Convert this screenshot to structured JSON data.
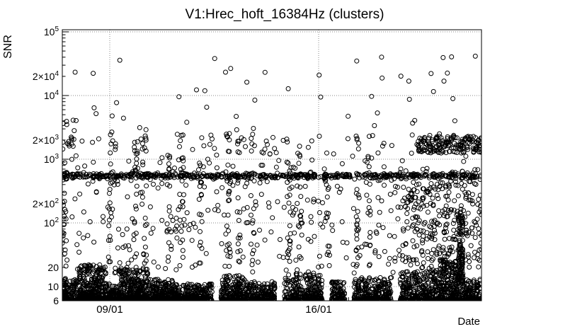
{
  "window": {
    "background": "#ffffff"
  },
  "chart_data": {
    "type": "scatter",
    "title": "V1:Hrec_hoft_16384Hz (clusters)",
    "xlabel": "Date",
    "ylabel": "SNR",
    "y_scale": "log",
    "y_range": [
      6,
      108000
    ],
    "grid": true,
    "legend": "none",
    "axis_color": "#000000",
    "grid_color": "#888888",
    "marker": {
      "shape": "open-circle",
      "color": "#000000",
      "radius": 3
    },
    "y_ticks": [
      {
        "value": 100000,
        "label": "10^5",
        "major": true
      },
      {
        "value": 20000,
        "label": "2×10^4",
        "major": false
      },
      {
        "value": 10000,
        "label": "10^4",
        "major": true
      },
      {
        "value": 2000,
        "label": "2×10^3",
        "major": false
      },
      {
        "value": 1000,
        "label": "10^3",
        "major": true
      },
      {
        "value": 200,
        "label": "2×10^2",
        "major": false
      },
      {
        "value": 100,
        "label": "10^2",
        "major": true
      },
      {
        "value": 20,
        "label": "20",
        "major": false
      },
      {
        "value": 10,
        "label": "10",
        "major": true
      },
      {
        "value": 6,
        "label": "6",
        "major": false
      }
    ],
    "x_ticks": [
      {
        "label": "09/01",
        "f": 0.1132
      },
      {
        "label": "16/01",
        "f": 0.6115
      }
    ],
    "x_minor_ticks": {
      "start_f": 0.042,
      "step_f": 0.0712
    },
    "seed": 20170109,
    "clusters": [
      {
        "name": "noise-floor-a",
        "dist": "lowbias",
        "x0": 0.0,
        "x1": 0.04,
        "count": 140,
        "ymin": 6,
        "ymax": 13
      },
      {
        "name": "noise-floor-b",
        "dist": "lowbias",
        "x0": 0.04,
        "x1": 0.105,
        "count": 380,
        "ymin": 6,
        "ymax": 22
      },
      {
        "name": "noise-floor-c",
        "dist": "lowbias",
        "x0": 0.105,
        "x1": 0.135,
        "count": 120,
        "ymin": 6,
        "ymax": 11
      },
      {
        "name": "noise-floor-d",
        "dist": "lowbias",
        "x0": 0.135,
        "x1": 0.205,
        "count": 380,
        "ymin": 6,
        "ymax": 20
      },
      {
        "name": "noise-floor-e",
        "dist": "lowbias",
        "x0": 0.205,
        "x1": 0.265,
        "count": 220,
        "ymin": 6,
        "ymax": 13
      },
      {
        "name": "noise-floor-f",
        "dist": "lowbias",
        "x0": 0.265,
        "x1": 0.358,
        "count": 300,
        "ymin": 6,
        "ymax": 11
      },
      {
        "name": "noise-floor-g",
        "dist": "lowbias",
        "x0": 0.378,
        "x1": 0.44,
        "count": 240,
        "ymin": 6,
        "ymax": 15
      },
      {
        "name": "noise-floor-h",
        "dist": "lowbias",
        "x0": 0.44,
        "x1": 0.507,
        "count": 220,
        "ymin": 6,
        "ymax": 12
      },
      {
        "name": "noise-floor-i",
        "dist": "lowbias",
        "x0": 0.53,
        "x1": 0.62,
        "count": 300,
        "ymin": 6,
        "ymax": 16
      },
      {
        "name": "noise-floor-j",
        "dist": "lowbias",
        "x0": 0.642,
        "x1": 0.674,
        "count": 110,
        "ymin": 6,
        "ymax": 12
      },
      {
        "name": "noise-floor-k",
        "dist": "lowbias",
        "x0": 0.696,
        "x1": 0.785,
        "count": 310,
        "ymin": 6,
        "ymax": 14
      },
      {
        "name": "noise-floor-l",
        "dist": "lowbias",
        "x0": 0.806,
        "x1": 0.9,
        "count": 330,
        "ymin": 6,
        "ymax": 18
      },
      {
        "name": "noise-floor-m",
        "dist": "lowbias",
        "x0": 0.9,
        "x1": 0.955,
        "count": 300,
        "ymin": 6,
        "ymax": 28
      },
      {
        "name": "noise-floor-n",
        "dist": "lowbias",
        "x0": 0.955,
        "x1": 1.0,
        "count": 160,
        "ymin": 6,
        "ymax": 13
      },
      {
        "name": "snr-500-band",
        "dist": "gauss",
        "x0": 0.0,
        "x1": 1.0,
        "count": 560,
        "mu": 550,
        "sigma": 0.02
      },
      {
        "name": "mid-scatter",
        "dist": "logu",
        "x0": 0.0,
        "x1": 1.0,
        "count": 420,
        "ymin": 16,
        "ymax": 2600
      },
      {
        "name": "high-outliers",
        "dist": "logu",
        "x0": 0.0,
        "x1": 1.0,
        "count": 48,
        "ymin": 2800,
        "ymax": 45000
      },
      {
        "name": "left-high-cluster",
        "dist": "logu",
        "x0": 0.0,
        "x1": 0.07,
        "count": 14,
        "ymin": 1500,
        "ymax": 4500
      },
      {
        "name": "right-glitch-cluster",
        "dist": "logu",
        "x0": 0.845,
        "x1": 1.0,
        "count": 170,
        "ymin": 1250,
        "ymax": 2300
      },
      {
        "name": "right-low-scatter",
        "dist": "logu",
        "x0": 0.8,
        "x1": 1.0,
        "count": 260,
        "ymin": 18,
        "ymax": 700
      },
      {
        "name": "right-streak",
        "dist": "logu",
        "x0": 0.944,
        "x1": 0.956,
        "count": 90,
        "ymin": 10,
        "ymax": 130
      },
      {
        "name": "left-edge-column",
        "dist": "logu",
        "x0": 0.0,
        "x1": 0.01,
        "count": 25,
        "ymin": 8,
        "ymax": 2000
      },
      {
        "name": "column-1",
        "dist": "logu",
        "x0": 0.11,
        "x1": 0.12,
        "count": 20,
        "ymin": 20,
        "ymax": 3000
      },
      {
        "name": "column-2",
        "dist": "logu",
        "x0": 0.17,
        "x1": 0.18,
        "count": 25,
        "ymin": 20,
        "ymax": 2500
      },
      {
        "name": "column-3",
        "dist": "logu",
        "x0": 0.19,
        "x1": 0.2,
        "count": 20,
        "ymin": 20,
        "ymax": 2500
      },
      {
        "name": "column-4",
        "dist": "logu",
        "x0": 0.25,
        "x1": 0.26,
        "count": 18,
        "ymin": 20,
        "ymax": 1500
      },
      {
        "name": "column-5",
        "dist": "logu",
        "x0": 0.28,
        "x1": 0.29,
        "count": 20,
        "ymin": 20,
        "ymax": 2500
      },
      {
        "name": "column-6",
        "dist": "logu",
        "x0": 0.325,
        "x1": 0.335,
        "count": 16,
        "ymin": 20,
        "ymax": 1200
      },
      {
        "name": "column-7",
        "dist": "logu",
        "x0": 0.39,
        "x1": 0.4,
        "count": 20,
        "ymin": 20,
        "ymax": 2500
      },
      {
        "name": "column-8",
        "dist": "logu",
        "x0": 0.415,
        "x1": 0.425,
        "count": 18,
        "ymin": 20,
        "ymax": 2000
      },
      {
        "name": "column-9",
        "dist": "logu",
        "x0": 0.45,
        "x1": 0.46,
        "count": 20,
        "ymin": 20,
        "ymax": 2500
      },
      {
        "name": "column-10",
        "dist": "logu",
        "x0": 0.535,
        "x1": 0.545,
        "count": 20,
        "ymin": 20,
        "ymax": 2500
      },
      {
        "name": "column-11",
        "dist": "logu",
        "x0": 0.56,
        "x1": 0.57,
        "count": 18,
        "ymin": 20,
        "ymax": 1800
      },
      {
        "name": "column-12",
        "dist": "logu",
        "x0": 0.625,
        "x1": 0.635,
        "count": 16,
        "ymin": 30,
        "ymax": 1500
      },
      {
        "name": "column-13",
        "dist": "logu",
        "x0": 0.7,
        "x1": 0.71,
        "count": 20,
        "ymin": 20,
        "ymax": 2200
      },
      {
        "name": "column-14",
        "dist": "logu",
        "x0": 0.725,
        "x1": 0.735,
        "count": 16,
        "ymin": 20,
        "ymax": 1500
      }
    ]
  }
}
